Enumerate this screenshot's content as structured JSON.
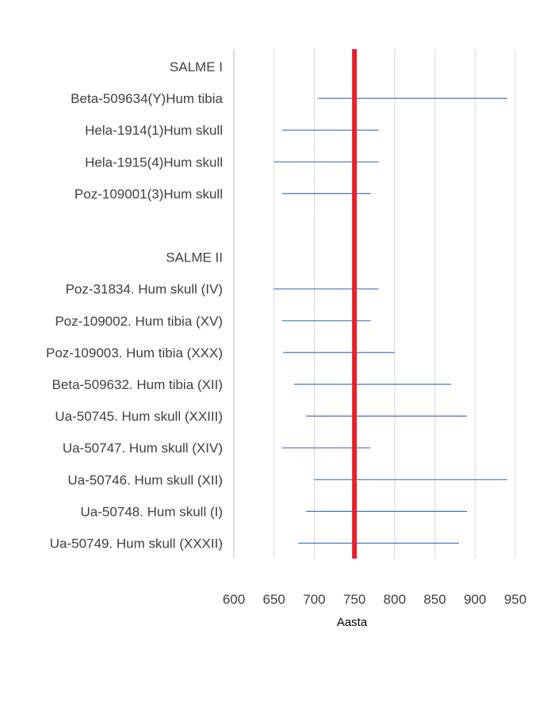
{
  "chart_data": {
    "type": "range-bar",
    "xlabel": "Aasta",
    "xlim": [
      600,
      950
    ],
    "x_ticks": [
      600,
      650,
      700,
      750,
      800,
      850,
      900,
      950
    ],
    "grid": true,
    "reference_line": {
      "x": 750,
      "color": "#e8202a"
    },
    "range_color": "#4472c4",
    "categories": [
      {
        "label": "SALME I",
        "range": null
      },
      {
        "label": "Beta-509634(Y)Hum tibia",
        "range": [
          705,
          940
        ]
      },
      {
        "label": "Hela-1914(1)Hum skull",
        "range": [
          660,
          780
        ]
      },
      {
        "label": "Hela-1915(4)Hum skull",
        "range": [
          650,
          780
        ]
      },
      {
        "label": "Poz-109001(3)Hum skull",
        "range": [
          660,
          770
        ]
      },
      {
        "label": "",
        "range": null
      },
      {
        "label": "SALME II",
        "range": null
      },
      {
        "label": "Poz-31834. Hum skull (IV)",
        "range": [
          650,
          780
        ]
      },
      {
        "label": "Poz-109002. Hum tibia (XV)",
        "range": [
          660,
          770
        ]
      },
      {
        "label": "Poz-109003. Hum tibia (XXX)",
        "range": [
          661,
          800
        ]
      },
      {
        "label": "Beta-509632. Hum tibia (XII)",
        "range": [
          675,
          870
        ]
      },
      {
        "label": "Ua-50745. Hum skull (XXIII)",
        "range": [
          690,
          890
        ]
      },
      {
        "label": "Ua-50747. Hum skull (XIV)",
        "range": [
          660,
          770
        ]
      },
      {
        "label": "Ua-50746. Hum skull (XII)",
        "range": [
          700,
          940
        ]
      },
      {
        "label": "Ua-50748. Hum skull (I)",
        "range": [
          690,
          890
        ]
      },
      {
        "label": "Ua-50749. Hum skull (XXXII)",
        "range": [
          680,
          880
        ]
      }
    ]
  }
}
